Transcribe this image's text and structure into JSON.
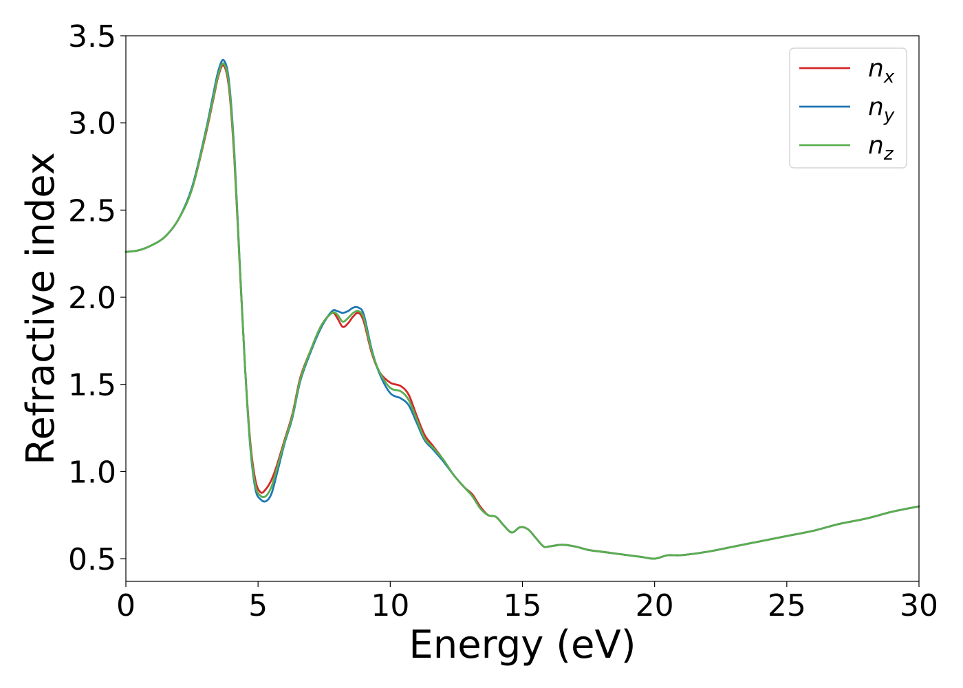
{
  "chart_data": {
    "type": "line",
    "title": "",
    "xlabel": "Energy (eV)",
    "ylabel": "Refractive index",
    "xlim": [
      0,
      30
    ],
    "ylim": [
      0.37,
      3.5
    ],
    "xticks": [
      0,
      5,
      10,
      15,
      20,
      25,
      30
    ],
    "yticks": [
      0.5,
      1.0,
      1.5,
      2.0,
      2.5,
      3.0,
      3.5
    ],
    "xtick_labels": [
      "0",
      "5",
      "10",
      "15",
      "20",
      "25",
      "30"
    ],
    "ytick_labels": [
      "0.5",
      "1.0",
      "1.5",
      "2.0",
      "2.5",
      "3.0",
      "3.5"
    ],
    "grid": false,
    "legend_position": "top-right",
    "series": [
      {
        "name": "x",
        "color": "#d62728",
        "x": [
          0,
          0.5,
          1.0,
          1.5,
          2.0,
          2.5,
          3.0,
          3.3,
          3.5,
          3.7,
          3.9,
          4.1,
          4.3,
          4.5,
          4.7,
          4.9,
          5.1,
          5.3,
          5.5,
          5.7,
          6.0,
          6.3,
          6.6,
          7.0,
          7.4,
          7.8,
          8.0,
          8.2,
          8.4,
          8.6,
          8.8,
          9.0,
          9.3,
          9.6,
          10.0,
          10.4,
          10.7,
          11.0,
          11.3,
          11.6,
          12.0,
          12.4,
          12.8,
          13.1,
          13.4,
          13.7,
          14.0,
          14.3,
          14.6,
          14.9,
          15.2,
          15.5,
          15.8,
          16.0,
          16.5,
          17.0,
          17.5,
          18.0,
          18.5,
          19.0,
          19.5,
          20.0,
          20.5,
          21.0,
          22.0,
          23.0,
          24.0,
          25.0,
          26.0,
          27.0,
          28.0,
          29.0,
          30.0
        ],
        "y": [
          2.26,
          2.27,
          2.3,
          2.35,
          2.45,
          2.62,
          2.92,
          3.13,
          3.27,
          3.33,
          3.2,
          2.8,
          2.2,
          1.62,
          1.18,
          0.95,
          0.88,
          0.9,
          0.95,
          1.03,
          1.18,
          1.33,
          1.54,
          1.7,
          1.84,
          1.91,
          1.88,
          1.83,
          1.85,
          1.89,
          1.91,
          1.86,
          1.68,
          1.57,
          1.51,
          1.49,
          1.44,
          1.32,
          1.21,
          1.15,
          1.07,
          0.98,
          0.91,
          0.87,
          0.8,
          0.75,
          0.74,
          0.69,
          0.65,
          0.68,
          0.67,
          0.62,
          0.57,
          0.57,
          0.58,
          0.57,
          0.55,
          0.54,
          0.53,
          0.52,
          0.51,
          0.5,
          0.52,
          0.52,
          0.54,
          0.57,
          0.6,
          0.63,
          0.66,
          0.7,
          0.73,
          0.77,
          0.8
        ]
      },
      {
        "name": "y",
        "color": "#1f77b4",
        "x": [
          0,
          0.5,
          1.0,
          1.5,
          2.0,
          2.5,
          3.0,
          3.3,
          3.5,
          3.7,
          3.9,
          4.1,
          4.3,
          4.5,
          4.7,
          4.9,
          5.1,
          5.3,
          5.5,
          5.7,
          6.0,
          6.3,
          6.6,
          7.0,
          7.4,
          7.8,
          8.0,
          8.2,
          8.4,
          8.6,
          8.8,
          9.0,
          9.3,
          9.6,
          10.0,
          10.4,
          10.7,
          11.0,
          11.3,
          11.6,
          12.0,
          12.4,
          12.8,
          13.1,
          13.4,
          13.7,
          14.0,
          14.3,
          14.6,
          14.9,
          15.2,
          15.5,
          15.8,
          16.0,
          16.5,
          17.0,
          17.5,
          18.0,
          18.5,
          19.0,
          19.5,
          20.0,
          20.5,
          21.0,
          22.0,
          23.0,
          24.0,
          25.0,
          26.0,
          27.0,
          28.0,
          29.0,
          30.0
        ],
        "y": [
          2.26,
          2.27,
          2.3,
          2.35,
          2.45,
          2.63,
          2.94,
          3.16,
          3.3,
          3.36,
          3.24,
          2.84,
          2.22,
          1.62,
          1.15,
          0.9,
          0.84,
          0.83,
          0.87,
          0.98,
          1.16,
          1.31,
          1.52,
          1.69,
          1.83,
          1.92,
          1.92,
          1.91,
          1.92,
          1.94,
          1.94,
          1.9,
          1.7,
          1.56,
          1.45,
          1.42,
          1.38,
          1.28,
          1.18,
          1.13,
          1.06,
          0.98,
          0.91,
          0.86,
          0.79,
          0.75,
          0.74,
          0.69,
          0.65,
          0.68,
          0.67,
          0.62,
          0.57,
          0.57,
          0.58,
          0.57,
          0.55,
          0.54,
          0.53,
          0.52,
          0.51,
          0.5,
          0.52,
          0.52,
          0.54,
          0.57,
          0.6,
          0.63,
          0.66,
          0.7,
          0.73,
          0.77,
          0.8
        ]
      },
      {
        "name": "z",
        "color": "#5aae4f",
        "x": [
          0,
          0.5,
          1.0,
          1.5,
          2.0,
          2.5,
          3.0,
          3.3,
          3.5,
          3.7,
          3.9,
          4.1,
          4.3,
          4.5,
          4.7,
          4.9,
          5.1,
          5.3,
          5.5,
          5.7,
          6.0,
          6.3,
          6.6,
          7.0,
          7.4,
          7.8,
          8.0,
          8.2,
          8.4,
          8.6,
          8.8,
          9.0,
          9.3,
          9.6,
          10.0,
          10.4,
          10.7,
          11.0,
          11.3,
          11.6,
          12.0,
          12.4,
          12.8,
          13.1,
          13.4,
          13.7,
          14.0,
          14.3,
          14.6,
          14.9,
          15.2,
          15.5,
          15.8,
          16.0,
          16.5,
          17.0,
          17.5,
          18.0,
          18.5,
          19.0,
          19.5,
          20.0,
          20.5,
          21.0,
          22.0,
          23.0,
          24.0,
          25.0,
          26.0,
          27.0,
          28.0,
          29.0,
          30.0
        ],
        "y": [
          2.26,
          2.27,
          2.3,
          2.35,
          2.45,
          2.62,
          2.93,
          3.14,
          3.28,
          3.34,
          3.22,
          2.82,
          2.21,
          1.62,
          1.16,
          0.92,
          0.86,
          0.86,
          0.91,
          1.01,
          1.17,
          1.32,
          1.53,
          1.7,
          1.84,
          1.91,
          1.9,
          1.86,
          1.88,
          1.91,
          1.92,
          1.88,
          1.69,
          1.57,
          1.48,
          1.46,
          1.41,
          1.3,
          1.19,
          1.14,
          1.07,
          0.98,
          0.91,
          0.86,
          0.79,
          0.75,
          0.74,
          0.69,
          0.65,
          0.68,
          0.67,
          0.62,
          0.57,
          0.57,
          0.58,
          0.57,
          0.55,
          0.54,
          0.53,
          0.52,
          0.51,
          0.5,
          0.52,
          0.52,
          0.54,
          0.57,
          0.6,
          0.63,
          0.66,
          0.7,
          0.73,
          0.77,
          0.8
        ]
      }
    ]
  }
}
